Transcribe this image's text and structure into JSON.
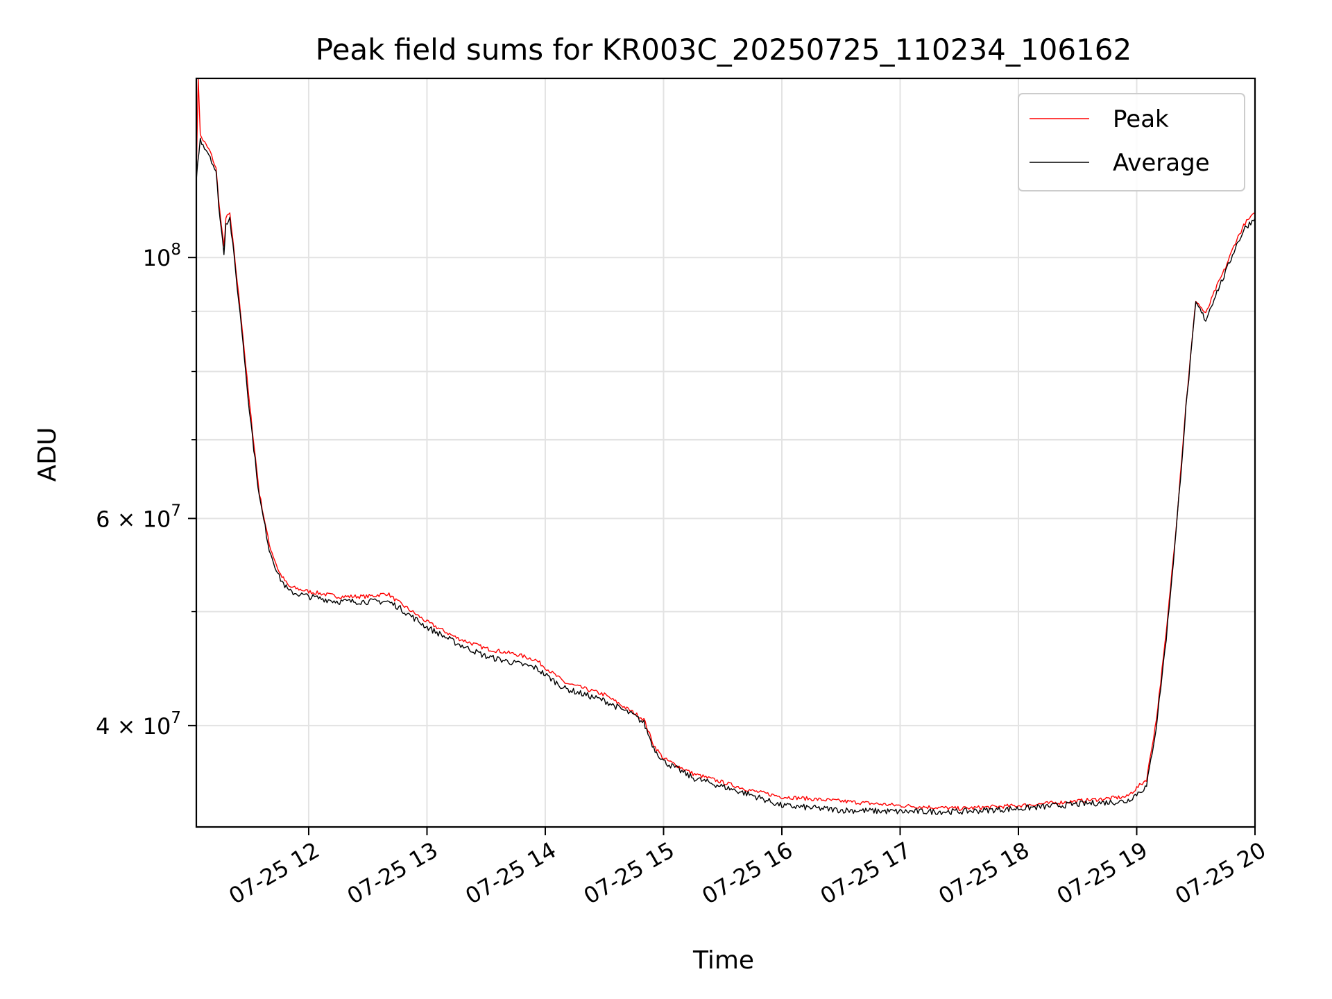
{
  "chart_data": {
    "type": "line",
    "title": "Peak field sums for KR003C_20250725_110234_106162",
    "xlabel": "Time",
    "ylabel": "ADU",
    "yscale": "log",
    "ylim": [
      32800000,
      142000000
    ],
    "xlim": [
      "2025-07-25 11:03",
      "2025-07-25 20:00"
    ],
    "x_ticks": [
      "07-25 12",
      "07-25 13",
      "07-25 14",
      "07-25 15",
      "07-25 16",
      "07-25 17",
      "07-25 18",
      "07-25 19",
      "07-25 20"
    ],
    "y_ticks_major": [
      {
        "value": 100000000,
        "label": "10⁸",
        "base": "10",
        "exp": "8"
      },
      {
        "value": 60000000,
        "label": "6 × 10⁷",
        "base": "6 × 10",
        "exp": "7"
      },
      {
        "value": 40000000,
        "label": "4 × 10⁷",
        "base": "4 × 10",
        "exp": "7"
      }
    ],
    "y_ticks_minor": [
      90000000,
      80000000,
      70000000,
      50000000
    ],
    "grid": true,
    "legend_position": "top-right",
    "series": [
      {
        "name": "Peak",
        "color": "#ff0000",
        "points": [
          [
            "2025-07-25 11:03",
            118000000
          ],
          [
            "2025-07-25 11:04",
            142000000
          ],
          [
            "2025-07-25 11:05",
            127000000
          ],
          [
            "2025-07-25 11:10",
            123000000
          ],
          [
            "2025-07-25 11:13",
            119000000
          ],
          [
            "2025-07-25 11:15",
            109000000
          ],
          [
            "2025-07-25 11:17",
            102000000
          ],
          [
            "2025-07-25 11:18",
            108000000
          ],
          [
            "2025-07-25 11:20",
            109000000
          ],
          [
            "2025-07-25 11:23",
            98000000
          ],
          [
            "2025-07-25 11:26",
            88000000
          ],
          [
            "2025-07-25 11:30",
            75000000
          ],
          [
            "2025-07-25 11:35",
            63000000
          ],
          [
            "2025-07-25 11:40",
            57000000
          ],
          [
            "2025-07-25 11:45",
            54000000
          ],
          [
            "2025-07-25 11:50",
            52500000
          ],
          [
            "2025-07-25 12:00",
            52000000
          ],
          [
            "2025-07-25 12:15",
            51500000
          ],
          [
            "2025-07-25 12:30",
            51500000
          ],
          [
            "2025-07-25 12:40",
            51800000
          ],
          [
            "2025-07-25 12:45",
            51000000
          ],
          [
            "2025-07-25 13:00",
            49000000
          ],
          [
            "2025-07-25 13:15",
            47500000
          ],
          [
            "2025-07-25 13:30",
            46500000
          ],
          [
            "2025-07-25 13:45",
            46000000
          ],
          [
            "2025-07-25 13:55",
            45500000
          ],
          [
            "2025-07-25 14:10",
            43500000
          ],
          [
            "2025-07-25 14:30",
            42500000
          ],
          [
            "2025-07-25 14:45",
            41000000
          ],
          [
            "2025-07-25 14:50",
            40500000
          ],
          [
            "2025-07-25 14:55",
            38500000
          ],
          [
            "2025-07-25 15:00",
            37500000
          ],
          [
            "2025-07-25 15:15",
            36400000
          ],
          [
            "2025-07-25 15:30",
            35800000
          ],
          [
            "2025-07-25 15:45",
            35200000
          ],
          [
            "2025-07-25 16:00",
            34800000
          ],
          [
            "2025-07-25 16:30",
            34500000
          ],
          [
            "2025-07-25 17:00",
            34200000
          ],
          [
            "2025-07-25 17:30",
            34000000
          ],
          [
            "2025-07-25 18:00",
            34200000
          ],
          [
            "2025-07-25 18:30",
            34500000
          ],
          [
            "2025-07-25 18:55",
            34800000
          ],
          [
            "2025-07-25 19:05",
            36000000
          ],
          [
            "2025-07-25 19:10",
            40500000
          ],
          [
            "2025-07-25 19:15",
            48000000
          ],
          [
            "2025-07-25 19:20",
            59000000
          ],
          [
            "2025-07-25 19:25",
            75000000
          ],
          [
            "2025-07-25 19:30",
            92000000
          ],
          [
            "2025-07-25 19:35",
            89500000
          ],
          [
            "2025-07-25 19:40",
            94000000
          ],
          [
            "2025-07-25 19:45",
            98000000
          ],
          [
            "2025-07-25 19:50",
            103000000
          ],
          [
            "2025-07-25 19:55",
            107000000
          ],
          [
            "2025-07-25 20:00",
            109000000
          ]
        ]
      },
      {
        "name": "Average",
        "color": "#000000",
        "points": [
          [
            "2025-07-25 11:03",
            117000000
          ],
          [
            "2025-07-25 11:05",
            126000000
          ],
          [
            "2025-07-25 11:10",
            122000000
          ],
          [
            "2025-07-25 11:13",
            118000000
          ],
          [
            "2025-07-25 11:15",
            108000000
          ],
          [
            "2025-07-25 11:17",
            101000000
          ],
          [
            "2025-07-25 11:18",
            107000000
          ],
          [
            "2025-07-25 11:20",
            108000000
          ],
          [
            "2025-07-25 11:23",
            97000000
          ],
          [
            "2025-07-25 11:26",
            87000000
          ],
          [
            "2025-07-25 11:30",
            74000000
          ],
          [
            "2025-07-25 11:35",
            62500000
          ],
          [
            "2025-07-25 11:40",
            56500000
          ],
          [
            "2025-07-25 11:45",
            53500000
          ],
          [
            "2025-07-25 11:50",
            52000000
          ],
          [
            "2025-07-25 12:00",
            51500000
          ],
          [
            "2025-07-25 12:15",
            51000000
          ],
          [
            "2025-07-25 12:30",
            51000000
          ],
          [
            "2025-07-25 12:40",
            51000000
          ],
          [
            "2025-07-25 12:45",
            50500000
          ],
          [
            "2025-07-25 13:00",
            48500000
          ],
          [
            "2025-07-25 13:15",
            47000000
          ],
          [
            "2025-07-25 13:30",
            45800000
          ],
          [
            "2025-07-25 13:45",
            45200000
          ],
          [
            "2025-07-25 13:55",
            44800000
          ],
          [
            "2025-07-25 14:10",
            43000000
          ],
          [
            "2025-07-25 14:30",
            42000000
          ],
          [
            "2025-07-25 14:45",
            40800000
          ],
          [
            "2025-07-25 14:50",
            40200000
          ],
          [
            "2025-07-25 14:55",
            38300000
          ],
          [
            "2025-07-25 15:00",
            37300000
          ],
          [
            "2025-07-25 15:15",
            36100000
          ],
          [
            "2025-07-25 15:30",
            35500000
          ],
          [
            "2025-07-25 15:45",
            34900000
          ],
          [
            "2025-07-25 16:00",
            34200000
          ],
          [
            "2025-07-25 16:30",
            33900000
          ],
          [
            "2025-07-25 17:00",
            33800000
          ],
          [
            "2025-07-25 17:30",
            33800000
          ],
          [
            "2025-07-25 18:00",
            34000000
          ],
          [
            "2025-07-25 18:30",
            34300000
          ],
          [
            "2025-07-25 18:55",
            34500000
          ],
          [
            "2025-07-25 19:05",
            35500000
          ],
          [
            "2025-07-25 19:10",
            40000000
          ],
          [
            "2025-07-25 19:15",
            47500000
          ],
          [
            "2025-07-25 19:20",
            58500000
          ],
          [
            "2025-07-25 19:25",
            74500000
          ],
          [
            "2025-07-25 19:30",
            91500000
          ],
          [
            "2025-07-25 19:35",
            88500000
          ],
          [
            "2025-07-25 19:40",
            93000000
          ],
          [
            "2025-07-25 19:45",
            97000000
          ],
          [
            "2025-07-25 19:50",
            102000000
          ],
          [
            "2025-07-25 19:55",
            106000000
          ],
          [
            "2025-07-25 20:00",
            108000000
          ]
        ]
      }
    ]
  }
}
